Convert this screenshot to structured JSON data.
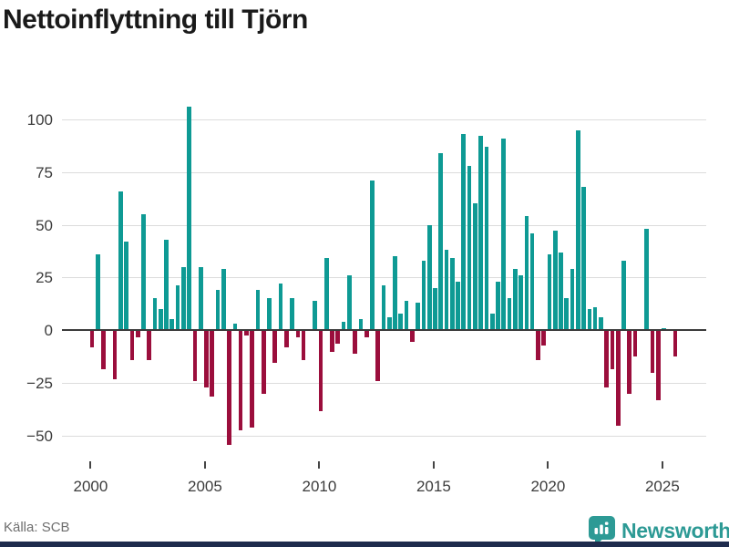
{
  "header": {
    "title": "Nettoinflyttning till Tjörn"
  },
  "footer": {
    "source_label": "Källa: SCB",
    "brand_name": "Newsworthy"
  },
  "colors": {
    "positive": "#0e9a94",
    "negative": "#9b0e3c",
    "zero_axis": "#3b3b3b",
    "gridline": "#dcdcdc",
    "brand_teal": "#2d9a95",
    "bottom_strip_navy": "#1e2b4d"
  },
  "chart_data": {
    "type": "bar",
    "title": "Nettoinflyttning till Tjörn",
    "xlabel": "",
    "ylabel": "",
    "ylim": [
      -50,
      100
    ],
    "grid": true,
    "legend": "none",
    "y_ticks": [
      {
        "value": 100,
        "label": "100"
      },
      {
        "value": 75,
        "label": "75"
      },
      {
        "value": 50,
        "label": "50"
      },
      {
        "value": 25,
        "label": "25"
      },
      {
        "value": 0,
        "label": "0"
      },
      {
        "value": -25,
        "label": "−25"
      },
      {
        "value": -50,
        "label": "−50"
      }
    ],
    "x_ticks": [
      {
        "year": 2000,
        "label": "2000"
      },
      {
        "year": 2005,
        "label": "2005"
      },
      {
        "year": 2010,
        "label": "2010"
      },
      {
        "year": 2015,
        "label": "2015"
      },
      {
        "year": 2020,
        "label": "2020"
      },
      {
        "year": 2025,
        "label": "2025"
      }
    ],
    "categories": [
      "2000 Q1",
      "2000 Q2",
      "2000 Q3",
      "2000 Q4",
      "2001 Q1",
      "2001 Q2",
      "2001 Q3",
      "2001 Q4",
      "2002 Q1",
      "2002 Q2",
      "2002 Q3",
      "2002 Q4",
      "2003 Q1",
      "2003 Q2",
      "2003 Q3",
      "2003 Q4",
      "2004 Q1",
      "2004 Q2",
      "2004 Q3",
      "2004 Q4",
      "2005 Q1",
      "2005 Q2",
      "2005 Q3",
      "2005 Q4",
      "2006 Q1",
      "2006 Q2",
      "2006 Q3",
      "2006 Q4",
      "2007 Q1",
      "2007 Q2",
      "2007 Q3",
      "2007 Q4",
      "2008 Q1",
      "2008 Q2",
      "2008 Q3",
      "2008 Q4",
      "2009 Q1",
      "2009 Q2",
      "2009 Q3",
      "2009 Q4",
      "2010 Q1",
      "2010 Q2",
      "2010 Q3",
      "2010 Q4",
      "2011 Q1",
      "2011 Q2",
      "2011 Q3",
      "2011 Q4",
      "2012 Q1",
      "2012 Q2",
      "2012 Q3",
      "2012 Q4",
      "2013 Q1",
      "2013 Q2",
      "2013 Q3",
      "2013 Q4",
      "2014 Q1",
      "2014 Q2",
      "2014 Q3",
      "2014 Q4",
      "2015 Q1",
      "2015 Q2",
      "2015 Q3",
      "2015 Q4",
      "2016 Q1",
      "2016 Q2",
      "2016 Q3",
      "2016 Q4",
      "2017 Q1",
      "2017 Q2",
      "2017 Q3",
      "2017 Q4",
      "2018 Q1",
      "2018 Q2",
      "2018 Q3",
      "2018 Q4",
      "2019 Q1",
      "2019 Q2",
      "2019 Q3",
      "2019 Q4",
      "2020 Q1",
      "2020 Q2",
      "2020 Q3",
      "2020 Q4",
      "2021 Q1",
      "2021 Q2",
      "2021 Q3",
      "2021 Q4",
      "2022 Q1",
      "2022 Q2",
      "2022 Q3",
      "2022 Q4",
      "2023 Q1",
      "2023 Q2",
      "2023 Q3",
      "2023 Q4",
      "2024 Q1",
      "2024 Q2",
      "2024 Q3",
      "2024 Q4",
      "2025 Q1",
      "2025 Q2",
      "2025 Q3"
    ],
    "values": [
      -8,
      36,
      -18,
      0,
      -23,
      66,
      42,
      -14,
      -3,
      55,
      -14,
      15,
      10,
      43,
      5,
      21,
      30,
      106,
      -24,
      30,
      -27,
      -31,
      19,
      29,
      -54,
      3,
      -47,
      -2,
      -46,
      19,
      -30,
      15,
      -15,
      22,
      -8,
      15,
      -3,
      -14,
      0,
      14,
      -38,
      34,
      -10,
      -6,
      4,
      26,
      -11,
      5,
      -3,
      71,
      -24,
      21,
      6,
      35,
      8,
      14,
      -5,
      13,
      33,
      50,
      20,
      84,
      38,
      34,
      23,
      93,
      78,
      60,
      92,
      87,
      8,
      23,
      91,
      15,
      29,
      26,
      54,
      46,
      -14,
      -7,
      36,
      47,
      37,
      15,
      29,
      95,
      68,
      10,
      11,
      6,
      -27,
      -18,
      -45,
      33,
      -30,
      -12,
      0,
      48,
      -20,
      -33,
      1,
      0,
      -12
    ]
  }
}
